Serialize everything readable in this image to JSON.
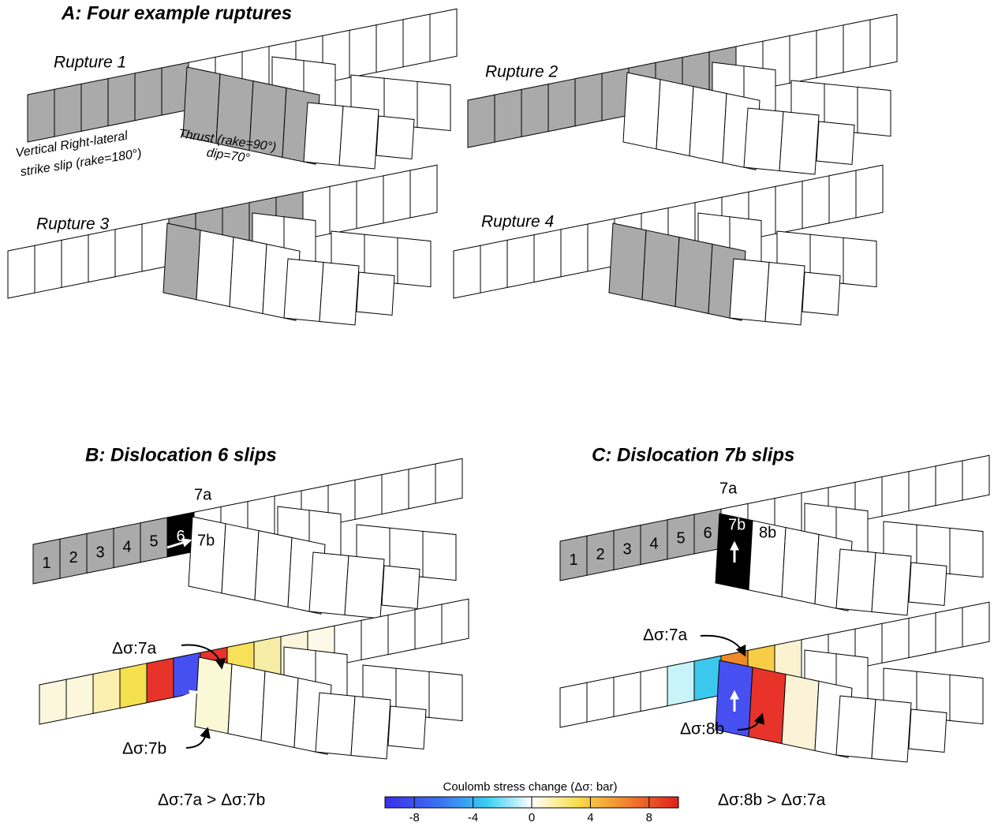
{
  "panel_a": {
    "title": "A: Four example ruptures",
    "ruptures": [
      "Rupture 1",
      "Rupture 2",
      "Rupture 3",
      "Rupture 4"
    ],
    "strike_slip_note": [
      "Vertical Right-lateral",
      "strike slip (rake=180°)"
    ],
    "thrust_note": [
      "Thrust (rake=90°)",
      "dip=70°"
    ]
  },
  "panel_b": {
    "title": "B: Dislocation 6 slips",
    "patch_labels": [
      "1",
      "2",
      "3",
      "4",
      "5",
      "6"
    ],
    "label_7a": "7a",
    "label_7b": "7b",
    "stress_7a": "Δσ:7a",
    "stress_7b": "Δσ:7b",
    "comparison": "Δσ:7a > Δσ:7b"
  },
  "panel_c": {
    "title": "C: Dislocation 7b slips",
    "patch_labels": [
      "1",
      "2",
      "3",
      "4",
      "5",
      "6"
    ],
    "label_7a": "7a",
    "label_7b": "7b",
    "label_8b": "8b",
    "stress_7a": "Δσ:7a",
    "stress_8b": "Δσ:8b",
    "comparison": "Δσ:8b > Δσ:7a"
  },
  "colorbar": {
    "title": "Coulomb stress change (Δσ: bar)",
    "lim": [
      -10,
      10
    ],
    "ticks": [
      -8,
      -4,
      0,
      4,
      8
    ]
  }
}
